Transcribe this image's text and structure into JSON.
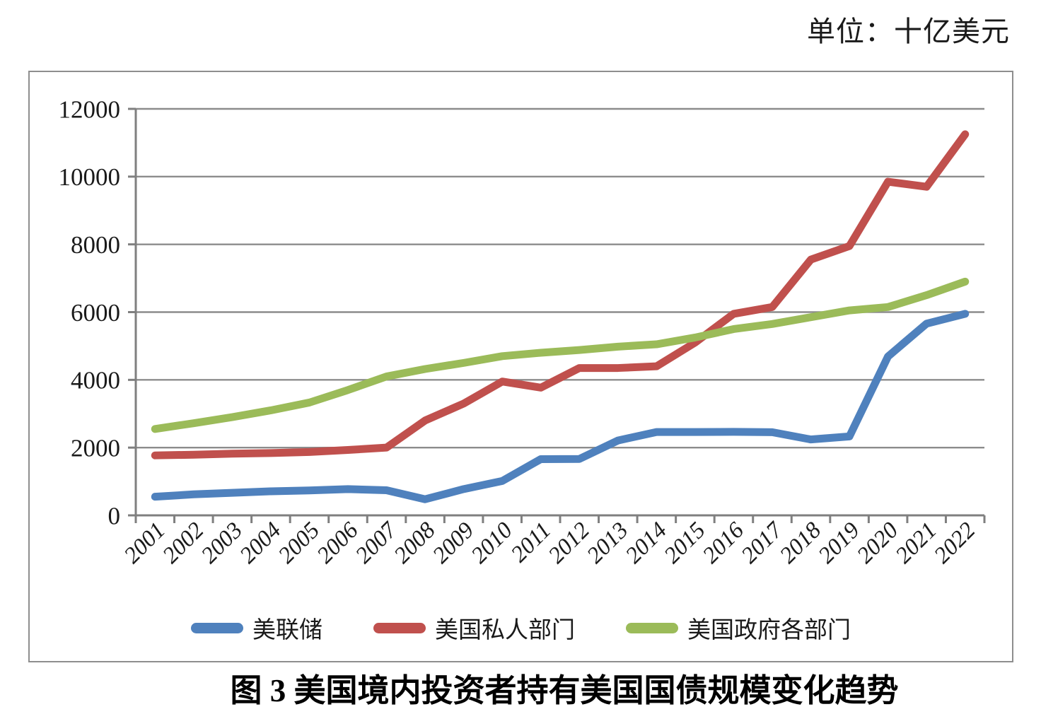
{
  "header": {
    "unit_label": "单位：十亿美元"
  },
  "caption": "图 3 美国境内投资者持有美国国债规模变化趋势",
  "chart_data": {
    "type": "line",
    "title": "图 3 美国境内投资者持有美国国债规模变化趋势",
    "unit": "十亿美元",
    "categories": [
      "2001",
      "2002",
      "2003",
      "2004",
      "2005",
      "2006",
      "2007",
      "2008",
      "2009",
      "2010",
      "2011",
      "2012",
      "2013",
      "2014",
      "2015",
      "2016",
      "2017",
      "2018",
      "2019",
      "2020",
      "2021",
      "2022"
    ],
    "series": [
      {
        "name": "美联储",
        "color": "#4F81BD",
        "values": [
          550,
          620,
          665,
          710,
          735,
          775,
          740,
          475,
          775,
          1015,
          1660,
          1665,
          2210,
          2460,
          2460,
          2465,
          2455,
          2240,
          2330,
          4690,
          5660,
          5950
        ]
      },
      {
        "name": "美国私人部门",
        "color": "#C0504D",
        "values": [
          1770,
          1790,
          1820,
          1840,
          1870,
          1930,
          2000,
          2800,
          3300,
          3950,
          3770,
          4350,
          4350,
          4400,
          5100,
          5950,
          6150,
          7550,
          7950,
          9850,
          9700,
          11250
        ]
      },
      {
        "name": "美国政府各部门",
        "color": "#9BBB59",
        "values": [
          2550,
          2720,
          2900,
          3100,
          3330,
          3700,
          4100,
          4320,
          4500,
          4700,
          4800,
          4880,
          4980,
          5050,
          5250,
          5500,
          5650,
          5850,
          6050,
          6150,
          6500,
          6900
        ]
      }
    ],
    "ylim": [
      0,
      12000
    ],
    "yticks": [
      0,
      2000,
      4000,
      6000,
      8000,
      10000,
      12000
    ],
    "grid": true,
    "legend_position": "bottom",
    "axis_color": "#7f7f7f",
    "gridline_color": "#8c8c8c"
  }
}
